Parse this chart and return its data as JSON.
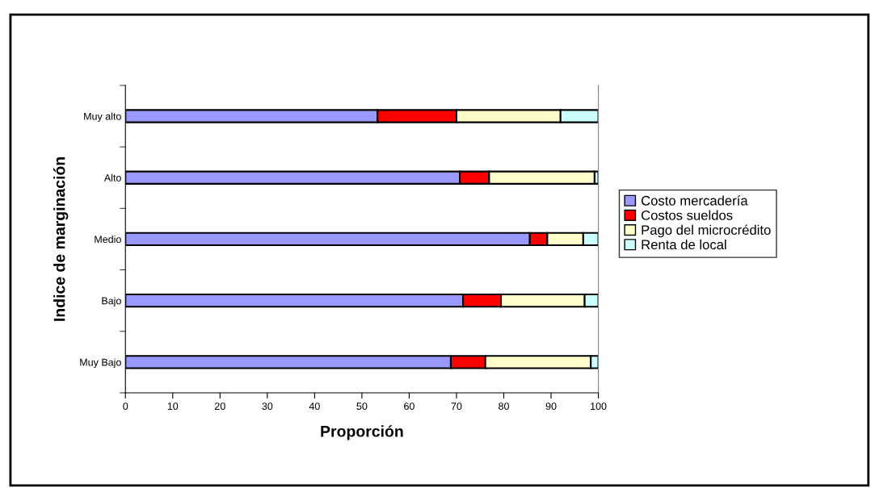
{
  "chart_data": {
    "type": "bar",
    "orientation": "horizontal",
    "stacked": true,
    "xlabel": "Proporción",
    "ylabel": "Indice de marginación",
    "categories": [
      "Muy alto",
      "Alto",
      "Medio",
      "Bajo",
      "Muy Bajo"
    ],
    "series": [
      {
        "name": "Costo mercadería",
        "color": "#9999ff",
        "values": [
          53.3,
          70.7,
          85.5,
          71.4,
          68.8
        ]
      },
      {
        "name": "Costos sueldos",
        "color": "#ff0000",
        "values": [
          16.7,
          6.2,
          3.7,
          8.0,
          7.3
        ]
      },
      {
        "name": "Pago del microcrédito",
        "color": "#ffffcc",
        "values": [
          22.0,
          22.3,
          7.6,
          17.7,
          22.3
        ]
      },
      {
        "name": "Renta de local",
        "color": "#ccffff",
        "values": [
          8.0,
          0.8,
          3.2,
          2.9,
          1.6
        ]
      }
    ],
    "xlim": [
      0,
      100
    ],
    "xticks": [
      0,
      10,
      20,
      30,
      40,
      50,
      60,
      70,
      80,
      90,
      100
    ],
    "grid": false,
    "legend": "right"
  }
}
